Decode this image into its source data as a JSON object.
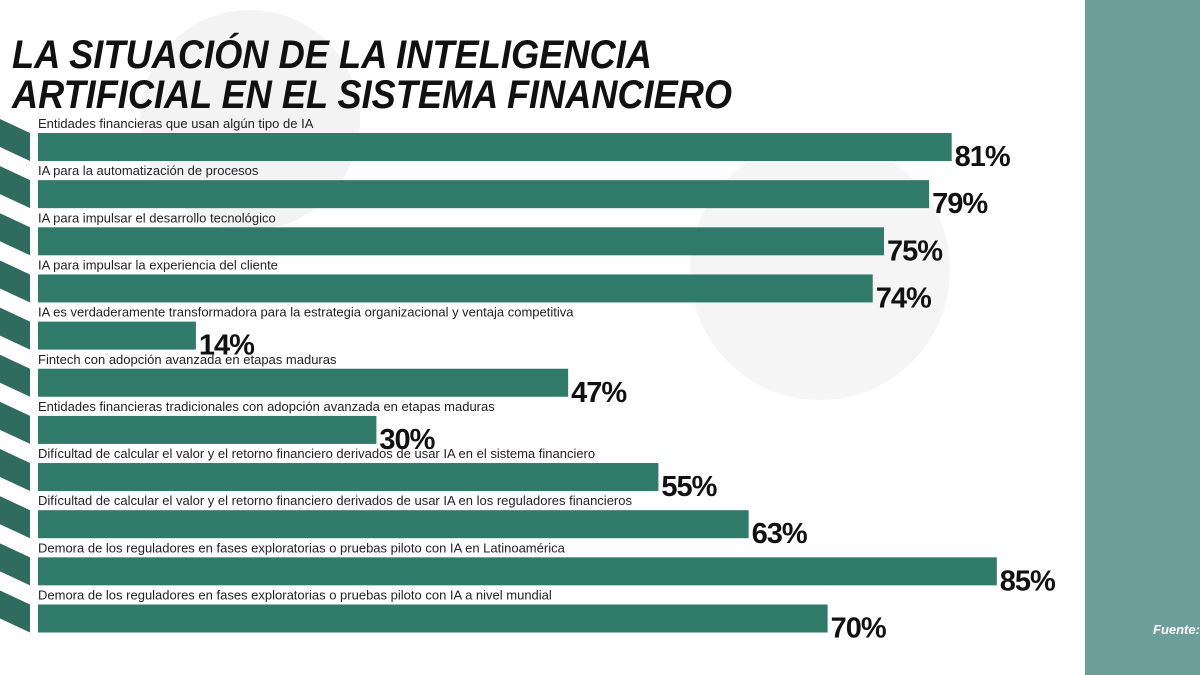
{
  "chart_data": {
    "type": "bar",
    "title": [
      "LA SITUACIÓN DE LA INTELIGENCIA",
      "ARTIFICIAL EN EL SISTEMA FINANCIERO"
    ],
    "categories": [
      "Entidades financieras que usan algún tipo de IA",
      "IA para la automatización de procesos",
      "IA para impulsar el desarrollo tecnológico",
      "IA para impulsar la experiencia del cliente",
      "IA es verdaderamente transformadora para la estrategia organizacional y ventaja competitiva",
      "Fintech con adopción avanzada en etapas maduras",
      "Entidades financieras tradicionales con adopción avanzada en etapas maduras",
      "Difícultad de calcular el valor y el retorno financiero derivados de usar IA en el sistema financiero",
      "Difícultad de calcular el valor y el retorno financiero derivados de usar IA en los reguladores financieros",
      "Demora de los reguladores en fases exploratorias o pruebas piloto con IA en Latinoamérica",
      "Demora de los reguladores en fases exploratorias o pruebas piloto con IA a nivel mundial"
    ],
    "values": [
      81,
      79,
      75,
      74,
      14,
      47,
      30,
      55,
      63,
      85,
      70
    ],
    "value_labels": [
      "81%",
      "79%",
      "75%",
      "74%",
      "14%",
      "47%",
      "30%",
      "55%",
      "63%",
      "85%",
      "70%"
    ],
    "color": "#2f7a69",
    "source": "Fuente:"
  }
}
